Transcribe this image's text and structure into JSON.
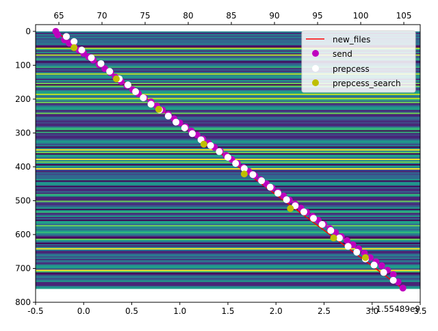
{
  "chart_data": {
    "type": "scatter",
    "title": "",
    "xlabel": "",
    "ylabel": "",
    "x_offset_text": "+1.55489e9",
    "x_bottom_ticks": [
      "-0.5",
      "0.0",
      "0.5",
      "1.0",
      "1.5",
      "2.0",
      "2.5",
      "3.0",
      "3.5"
    ],
    "x_bottom_values": [
      -0.5,
      0.0,
      0.5,
      1.0,
      1.5,
      2.0,
      2.5,
      3.0,
      3.5
    ],
    "xlim_bottom": [
      -0.5,
      3.5
    ],
    "x_top_ticks": [
      "65",
      "70",
      "75",
      "80",
      "85",
      "90",
      "95",
      "100",
      "105"
    ],
    "x_top_values": [
      65,
      70,
      75,
      80,
      85,
      90,
      95,
      100,
      105
    ],
    "xlim_top": [
      62.3,
      106.9
    ],
    "y_ticks": [
      "0",
      "100",
      "200",
      "300",
      "400",
      "500",
      "600",
      "700",
      "800"
    ],
    "y_values": [
      0,
      100,
      200,
      300,
      400,
      500,
      600,
      700,
      800
    ],
    "ylim": [
      800,
      -20
    ],
    "heatmap": {
      "x_range": [
        -0.5,
        3.5
      ],
      "y_range": [
        0,
        760
      ]
    },
    "legend_position": "top-right",
    "series": [
      {
        "name": "new_files",
        "kind": "line",
        "color": "#ff0000",
        "x": [
          -0.29,
          3.32
        ],
        "y": [
          0,
          760
        ]
      },
      {
        "name": "send",
        "kind": "scatter",
        "color": "#bf00bf",
        "x": [
          -0.29,
          -0.27,
          -0.2,
          -0.15,
          -0.1,
          -0.05,
          0.0,
          0.05,
          0.1,
          0.16,
          0.22,
          0.28,
          0.33,
          0.39,
          0.45,
          0.51,
          0.57,
          0.63,
          0.7,
          0.76,
          0.82,
          0.88,
          0.94,
          1.0,
          1.06,
          1.12,
          1.18,
          1.24,
          1.3,
          1.36,
          1.42,
          1.48,
          1.54,
          1.6,
          1.66,
          1.72,
          1.78,
          1.84,
          1.9,
          1.96,
          2.02,
          2.08,
          2.14,
          2.2,
          2.26,
          2.32,
          2.38,
          2.44,
          2.5,
          2.56,
          2.62,
          2.68,
          2.74,
          2.8,
          2.86,
          2.92,
          2.98,
          3.04,
          3.1,
          3.16,
          3.22,
          3.27,
          3.32
        ],
        "y": [
          0,
          10,
          25,
          35,
          45,
          55,
          65,
          75,
          85,
          98,
          110,
          122,
          135,
          148,
          160,
          172,
          184,
          196,
          208,
          220,
          232,
          245,
          258,
          270,
          282,
          294,
          306,
          318,
          330,
          342,
          354,
          366,
          378,
          390,
          402,
          414,
          426,
          438,
          450,
          462,
          474,
          486,
          498,
          510,
          522,
          534,
          546,
          558,
          570,
          582,
          594,
          606,
          618,
          630,
          642,
          655,
          668,
          680,
          692,
          705,
          718,
          740,
          758
        ]
      },
      {
        "name": "prepcess",
        "kind": "scatter",
        "color": "#ffffff",
        "x": [
          -0.18,
          -0.1,
          -0.02,
          0.08,
          0.18,
          0.27,
          0.37,
          0.46,
          0.54,
          0.62,
          0.7,
          0.79,
          0.88,
          0.96,
          1.05,
          1.13,
          1.22,
          1.32,
          1.41,
          1.5,
          1.58,
          1.67,
          1.76,
          1.85,
          1.94,
          2.02,
          2.11,
          2.2,
          2.29,
          2.39,
          2.48,
          2.57,
          2.66,
          2.75,
          2.84,
          2.93,
          3.02,
          3.12,
          3.22
        ],
        "y": [
          15,
          30,
          55,
          78,
          95,
          118,
          140,
          158,
          178,
          196,
          215,
          232,
          250,
          268,
          285,
          302,
          320,
          337,
          355,
          372,
          390,
          405,
          423,
          441,
          460,
          478,
          497,
          515,
          533,
          552,
          570,
          588,
          610,
          635,
          652,
          672,
          690,
          712,
          735
        ]
      },
      {
        "name": "prepcess_search",
        "kind": "scatter",
        "color": "#bfbf00",
        "x": [
          -0.1,
          0.34,
          0.78,
          1.25,
          1.67,
          2.15,
          2.6,
          2.93
        ],
        "y": [
          48,
          140,
          230,
          333,
          421,
          523,
          610,
          668
        ]
      }
    ],
    "legend_labels": {
      "new_files": "new_files",
      "send": "send",
      "prepcess": "prepcess",
      "prepcess_search": "prepcess_search"
    }
  }
}
